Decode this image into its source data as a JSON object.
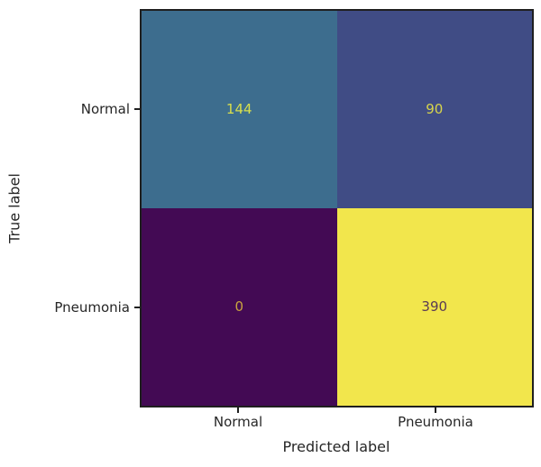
{
  "chart_data": {
    "type": "heatmap",
    "subtype": "confusion-matrix",
    "title": "",
    "xlabel": "Predicted label",
    "ylabel": "True label",
    "x_categories": [
      "Normal",
      "Pneumonia"
    ],
    "y_categories": [
      "Normal",
      "Pneumonia"
    ],
    "matrix": [
      [
        144,
        90
      ],
      [
        0,
        390
      ]
    ],
    "value_range": [
      0,
      390
    ],
    "colormap": "viridis",
    "grid": false,
    "legend": "none",
    "colors": {
      "background": "#ffffff",
      "axis": "#1f1f1f",
      "text": "#262626"
    },
    "cells": [
      {
        "true_label": "Normal",
        "predicted_label": "Normal",
        "value": "144",
        "bg_color": "#3d6d8e",
        "text_color": "#d8de4c"
      },
      {
        "true_label": "Normal",
        "predicted_label": "Pneumonia",
        "value": "90",
        "bg_color": "#404c85",
        "text_color": "#d8d54b"
      },
      {
        "true_label": "Pneumonia",
        "predicted_label": "Normal",
        "value": "0",
        "bg_color": "#430a54",
        "text_color": "#c9a53f"
      },
      {
        "true_label": "Pneumonia",
        "predicted_label": "Pneumonia",
        "value": "390",
        "bg_color": "#f2e64c",
        "text_color": "#5a3a55"
      }
    ]
  }
}
